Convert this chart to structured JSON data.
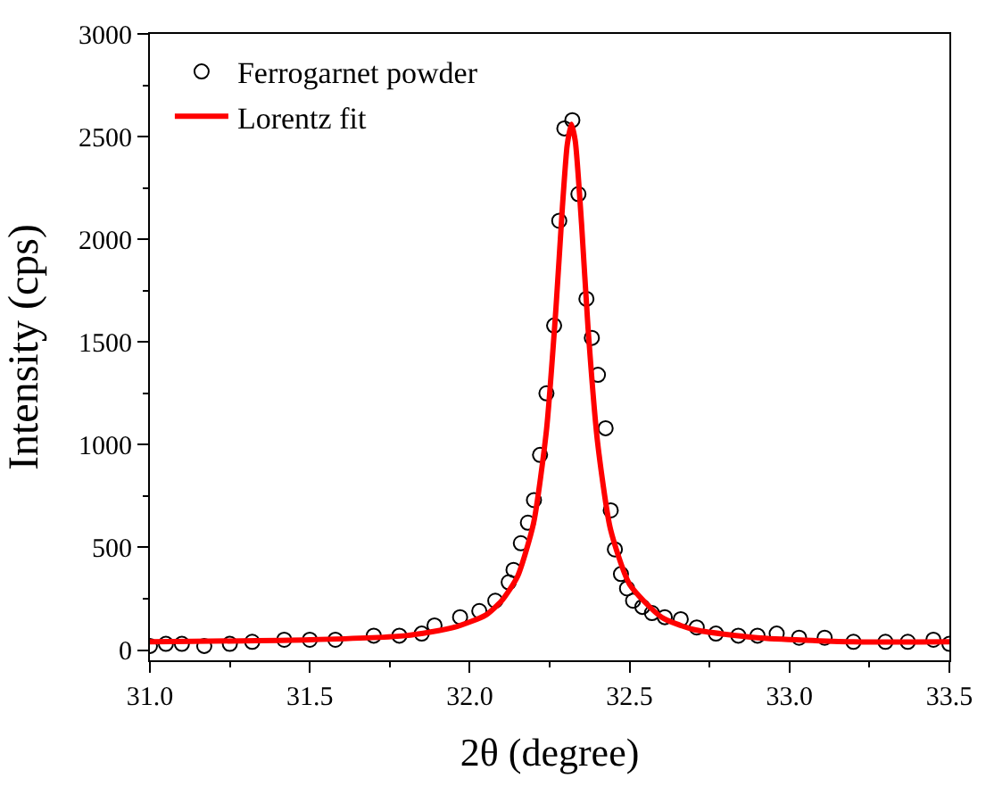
{
  "chart_data": {
    "type": "scatter",
    "xlabel": "2θ (degree)",
    "ylabel": "Intensity (cps)",
    "xlim": [
      31.0,
      33.5
    ],
    "xticks": [
      {
        "value": 31.0,
        "label": "31.0"
      },
      {
        "value": 31.5,
        "label": "31.5"
      },
      {
        "value": 32.0,
        "label": "32.0"
      },
      {
        "value": 32.5,
        "label": "32.5"
      },
      {
        "value": 33.0,
        "label": "33.0"
      },
      {
        "value": 33.5,
        "label": "33.5"
      }
    ],
    "ylim": [
      -50,
      3000
    ],
    "yticks": [
      0,
      500,
      1000,
      1500,
      2000,
      2500,
      3000
    ],
    "legend": "top left",
    "series": [
      {
        "name": "Ferrogarnet powder",
        "marker": "circle",
        "color": "#000000",
        "x": [
          31.0,
          31.05,
          31.1,
          31.17,
          31.25,
          31.32,
          31.42,
          31.5,
          31.58,
          31.7,
          31.78,
          31.85,
          31.89,
          31.97,
          32.03,
          32.08,
          32.122,
          32.137,
          32.16,
          32.182,
          32.201,
          32.22,
          32.24,
          32.264,
          32.28,
          32.296,
          32.321,
          32.34,
          32.365,
          32.382,
          32.401,
          32.425,
          32.441,
          32.454,
          32.473,
          32.492,
          32.511,
          32.54,
          32.57,
          32.61,
          32.66,
          32.71,
          32.77,
          32.84,
          32.9,
          32.96,
          33.03,
          33.11,
          33.2,
          33.3,
          33.37,
          33.45,
          33.5
        ],
        "values": [
          20,
          30,
          30,
          20,
          30,
          40,
          50,
          50,
          50,
          70,
          70,
          80,
          120,
          160,
          190,
          240,
          330,
          390,
          520,
          620,
          730,
          950,
          1250,
          1580,
          2090,
          2540,
          2580,
          2220,
          1710,
          1520,
          1340,
          1080,
          680,
          490,
          370,
          300,
          240,
          210,
          180,
          160,
          150,
          110,
          80,
          70,
          70,
          80,
          60,
          60,
          40,
          40,
          40,
          50,
          30
        ]
      },
      {
        "name": "Lorentz fit",
        "type": "line",
        "marker": "none",
        "line_style": "solid",
        "color": "#ff0000",
        "x": [
          31.0,
          31.5,
          31.8,
          31.95,
          32.05,
          32.1,
          32.15,
          32.2,
          32.24,
          32.27,
          32.29,
          32.305,
          32.318,
          32.33,
          32.35,
          32.37,
          32.4,
          32.44,
          32.5,
          32.6,
          32.7,
          32.9,
          33.2,
          33.5
        ],
        "values": [
          40,
          50,
          70,
          110,
          170,
          240,
          360,
          620,
          1070,
          1670,
          2160,
          2460,
          2560,
          2480,
          2070,
          1570,
          1010,
          590,
          320,
          160,
          100,
          60,
          40,
          40
        ]
      }
    ]
  }
}
